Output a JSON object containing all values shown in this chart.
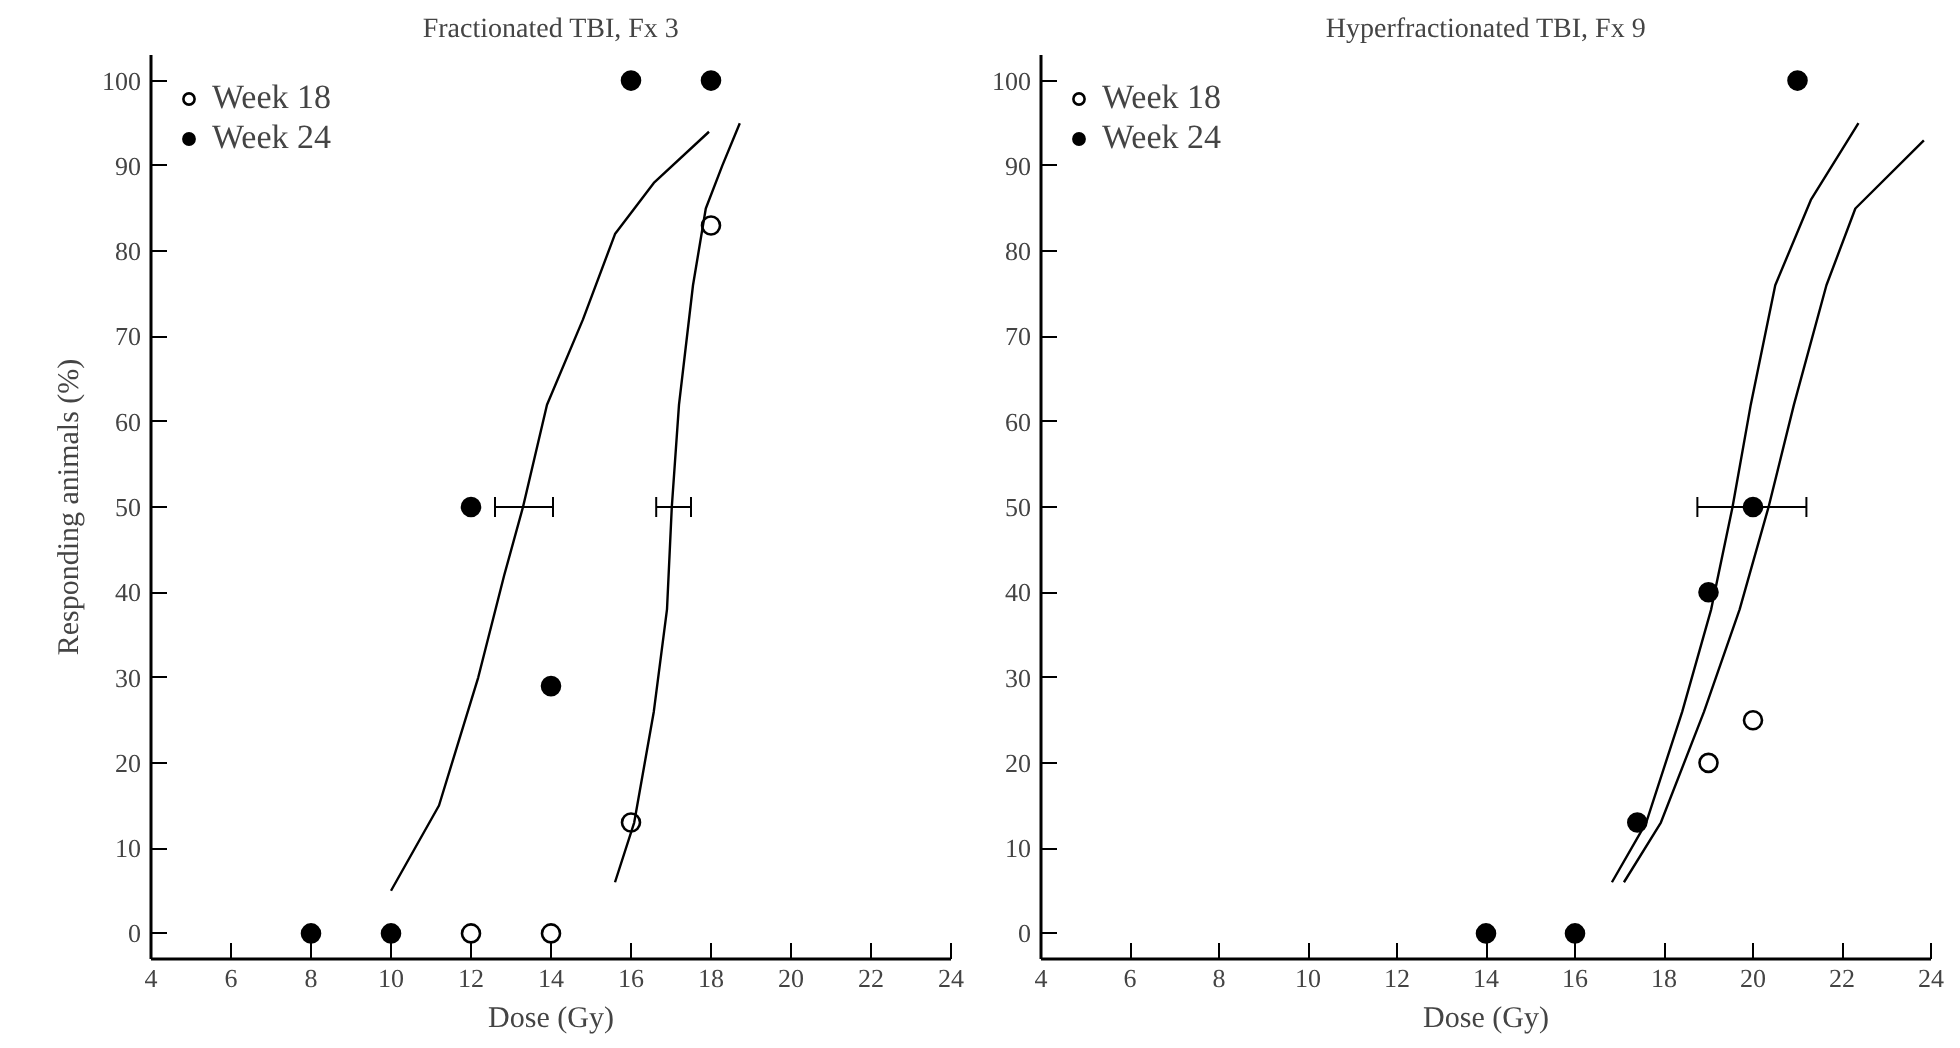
{
  "chart_data": [
    {
      "type": "scatter",
      "title": "Fractionated TBI, Fx 3",
      "xlabel": "Dose (Gy)",
      "ylabel": "Responding animals (%)",
      "xlim": [
        4,
        24
      ],
      "ylim": [
        -3,
        103
      ],
      "xticks": [
        4,
        6,
        8,
        10,
        12,
        14,
        16,
        18,
        20,
        22,
        24
      ],
      "yticks": [
        0,
        10,
        20,
        30,
        40,
        50,
        60,
        70,
        80,
        90,
        100
      ],
      "grid": false,
      "legend": "top left",
      "series": [
        {
          "name": "Week 18",
          "color": "#ffffff",
          "marker": "circle",
          "x": [
            12,
            14,
            16,
            18
          ],
          "values": [
            0,
            0,
            13,
            83
          ]
        },
        {
          "name": "Week 24",
          "color": "#000000",
          "marker": "circle",
          "x": [
            8,
            10,
            12,
            14,
            16,
            18
          ],
          "values": [
            0,
            0,
            50,
            29,
            100,
            100
          ]
        },
        {
          "type": "line",
          "color": "#000000",
          "marker": "none",
          "x": [
            10.0,
            11.2,
            12.18,
            12.83,
            13.3,
            13.9,
            14.8,
            15.6,
            16.57,
            17.95
          ],
          "values": [
            5,
            15,
            30,
            42,
            50,
            62,
            72,
            82,
            88,
            94
          ],
          "xerrors": [
            null,
            null,
            null,
            null,
            [
              12.6,
              14.05
            ],
            null,
            null,
            null,
            null,
            null
          ]
        },
        {
          "type": "line",
          "color": "#000000",
          "marker": "none",
          "x": [
            15.6,
            16.08,
            16.57,
            16.9,
            17.02,
            17.2,
            17.55,
            17.87,
            18.28,
            18.72
          ],
          "values": [
            6,
            13,
            26,
            38,
            50,
            62,
            76,
            85,
            90,
            95
          ],
          "xerrors": [
            null,
            null,
            null,
            null,
            [
              16.63,
              17.5
            ],
            null,
            null,
            null,
            null,
            null
          ]
        }
      ]
    },
    {
      "type": "scatter",
      "title": "Hyperfractionated TBI, Fx 9",
      "xlabel": "Dose (Gy)",
      "xlim": [
        4,
        24
      ],
      "ylim": [
        -3,
        103
      ],
      "xticks": [
        4,
        6,
        8,
        10,
        12,
        14,
        16,
        18,
        20,
        22,
        24
      ],
      "yticks": [
        0,
        10,
        20,
        30,
        40,
        50,
        60,
        70,
        80,
        90,
        100
      ],
      "grid": false,
      "legend": "top left",
      "series": [
        {
          "name": "Week 18",
          "color": "#ffffff",
          "marker": "circle",
          "x": [
            19,
            20
          ],
          "values": [
            20,
            25
          ]
        },
        {
          "name": "Week 24",
          "color": "#000000",
          "marker": "circle",
          "x": [
            14,
            16,
            17.4,
            19,
            20,
            21
          ],
          "values": [
            0,
            0,
            13,
            40,
            50,
            100
          ],
          "xerrors": [
            null,
            null,
            null,
            null,
            [
              18.75,
              21.2
            ],
            null
          ]
        },
        {
          "type": "line",
          "color": "#000000",
          "marker": "none",
          "x": [
            16.83,
            17.6,
            18.41,
            19.06,
            19.54,
            19.95,
            20.5,
            21.3,
            22.37
          ],
          "values": [
            6,
            13,
            26,
            38,
            50,
            62,
            76,
            86,
            95
          ]
        },
        {
          "type": "line",
          "color": "#000000",
          "marker": "none",
          "x": [
            17.1,
            17.93,
            18.9,
            19.7,
            20.35,
            20.92,
            21.65,
            22.3,
            23.84
          ],
          "values": [
            6,
            13,
            26,
            38,
            50,
            62,
            76,
            85,
            93
          ]
        }
      ]
    }
  ]
}
